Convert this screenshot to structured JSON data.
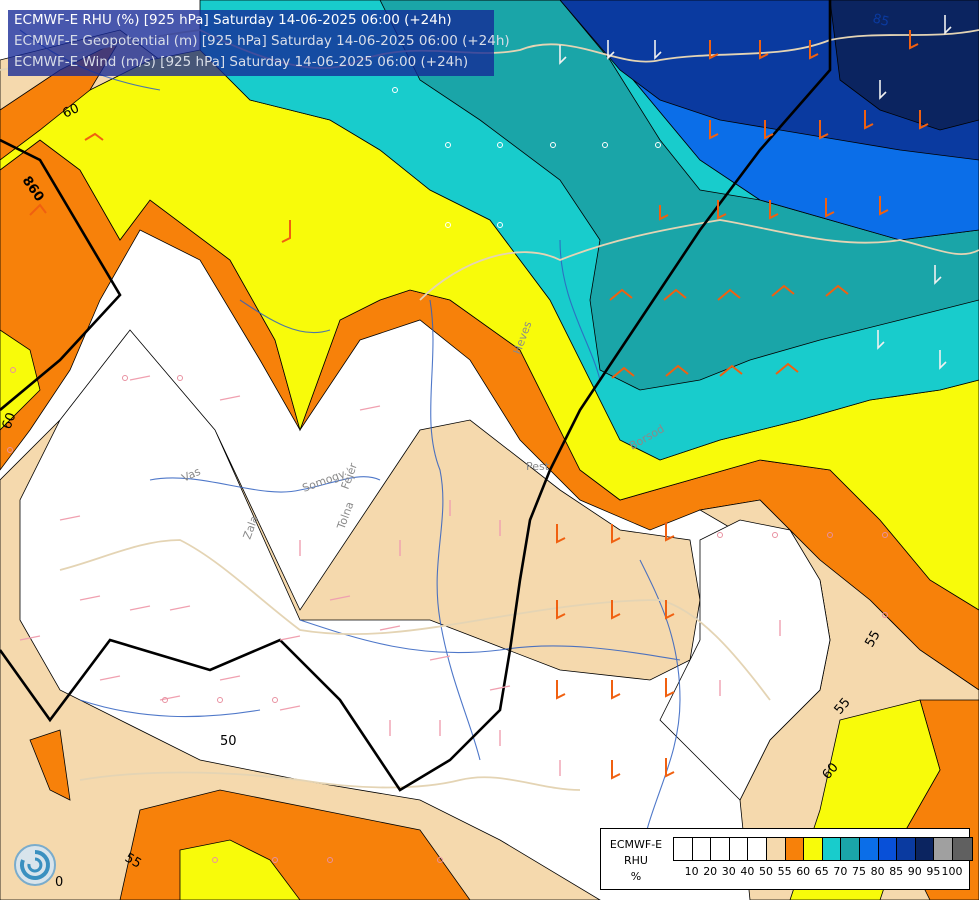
{
  "header": {
    "line1": "ECMWF-E RHU (%) [925 hPa] Saturday 14-06-2025 06:00 (+24h)",
    "line2": "ECMWF-E Geopotential (m) [925 hPa] Saturday 14-06-2025 06:00 (+24h)",
    "line3": "ECMWF-E Wind (m/s) [925 hPa] Saturday 14-06-2025 06:00 (+24h)"
  },
  "legend": {
    "model": "ECMWF-E",
    "variable": "RHU",
    "unit": "%",
    "ticks": [
      "10",
      "20",
      "30",
      "40",
      "50",
      "55",
      "60",
      "65",
      "70",
      "75",
      "80",
      "85",
      "90",
      "95",
      "100"
    ],
    "colors": [
      "#ffffff",
      "#ffffff",
      "#ffffff",
      "#ffffff",
      "#ffffff",
      "#f5d9ad",
      "#f7810a",
      "#f8fb0a",
      "#18cccc",
      "#1aa5a8",
      "#0b6ee8",
      "#0850d8",
      "#0a3aa0",
      "#0b2460",
      "#a0a0a0",
      "#606060"
    ]
  },
  "contour_labels": {
    "geopotential": "860",
    "rhu": [
      "60",
      "60",
      "55",
      "55",
      "60",
      "50",
      "55",
      "0",
      "85"
    ]
  },
  "place_labels": [
    "Vas",
    "Zala",
    "Somogy",
    "Fejér",
    "Tolna",
    "Pest",
    "Heves",
    "Borsod"
  ],
  "colors": {
    "white_band": "#ffffff",
    "tan_band": "#f5d9ad",
    "orange_band": "#f7810a",
    "yellow_band": "#f8fb0a",
    "cyan_band": "#18cccc",
    "teal_band": "#1aa5a8",
    "blue_band": "#0b6ee8",
    "navy_band": "#0a3aa0",
    "dark_navy_band": "#0b2460",
    "river": "#3060c0",
    "border": "#d8c8a8",
    "isohypse": "#000000"
  }
}
